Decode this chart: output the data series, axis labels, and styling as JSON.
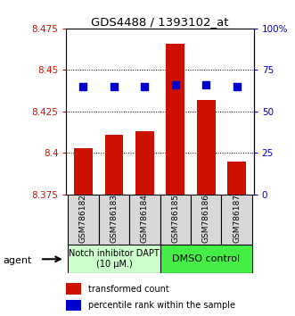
{
  "title": "GDS4488 / 1393102_at",
  "samples": [
    "GSM786182",
    "GSM786183",
    "GSM786184",
    "GSM786185",
    "GSM786186",
    "GSM786187"
  ],
  "bar_values": [
    8.403,
    8.411,
    8.413,
    8.466,
    8.432,
    8.395
  ],
  "percentile_ranks": [
    65,
    65,
    65,
    66,
    66,
    65
  ],
  "bar_color": "#cc1100",
  "percentile_color": "#0000cc",
  "ylim_left": [
    8.375,
    8.475
  ],
  "yticks_left": [
    8.375,
    8.4,
    8.425,
    8.45,
    8.475
  ],
  "yticks_right": [
    0,
    25,
    50,
    75,
    100
  ],
  "ylim_right": [
    0,
    100
  ],
  "group1_label": "Notch inhibitor DAPT\n(10 μM.)",
  "group2_label": "DMSO control",
  "group1_color": "#ccffcc",
  "group2_color": "#44ee44",
  "legend_bar_label": "transformed count",
  "legend_dot_label": "percentile rank within the sample",
  "agent_label": "agent",
  "bar_bottom": 8.375,
  "bar_width": 0.6
}
